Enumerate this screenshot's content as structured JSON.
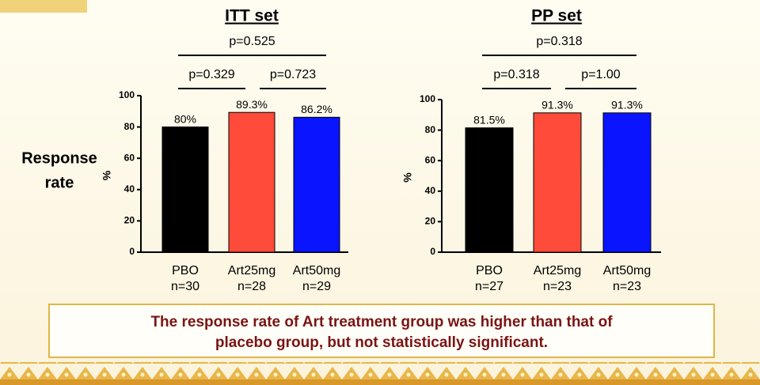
{
  "side_label": [
    "Response",
    "rate"
  ],
  "conclusion": [
    "The response rate of Art treatment group was higher than that of",
    "placebo group, but not statistically significant."
  ],
  "chart_data": [
    {
      "type": "bar",
      "title": "ITT set",
      "y_label": "%",
      "categories": [
        "PBO",
        "Art25mg",
        "Art50mg"
      ],
      "n_labels": [
        "n=30",
        "n=28",
        "n=29"
      ],
      "values": [
        80,
        89.3,
        86.2
      ],
      "value_labels": [
        "80%",
        "89.3%",
        "86.2%"
      ],
      "colors": [
        "#000000",
        "#ff4b3a",
        "#0a14ff"
      ],
      "ylim": [
        0,
        100
      ],
      "yticks": [
        0,
        20,
        40,
        60,
        80,
        100
      ],
      "annotations": [
        {
          "label": "p=0.525",
          "from": 0,
          "to": 2
        },
        {
          "label": "p=0.329",
          "from": 0,
          "to": 1
        },
        {
          "label": "p=0.723",
          "from": 1,
          "to": 2
        }
      ]
    },
    {
      "type": "bar",
      "title": "PP set",
      "y_label": "%",
      "categories": [
        "PBO",
        "Art25mg",
        "Art50mg"
      ],
      "n_labels": [
        "n=27",
        "n=23",
        "n=23"
      ],
      "values": [
        81.5,
        91.3,
        91.3
      ],
      "value_labels": [
        "81.5%",
        "91.3%",
        "91.3%"
      ],
      "colors": [
        "#000000",
        "#ff4b3a",
        "#0a14ff"
      ],
      "ylim": [
        0,
        100
      ],
      "yticks": [
        0,
        20,
        40,
        60,
        80,
        100
      ],
      "annotations": [
        {
          "label": "p=0.318",
          "from": 0,
          "to": 2
        },
        {
          "label": "p=0.318",
          "from": 0,
          "to": 1
        },
        {
          "label": "p=1.00",
          "from": 1,
          "to": 2
        }
      ]
    }
  ]
}
